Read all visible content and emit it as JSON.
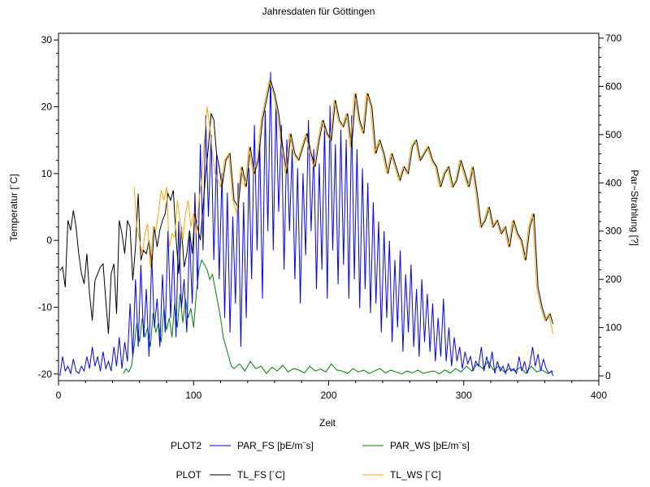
{
  "chart_data": {
    "type": "line",
    "title": "Jahresdaten für Göttingen",
    "xlabel": "Zeit",
    "ylabel_left": "Temperatur [´C]",
    "ylabel_right": "Par−Strahlung [?]",
    "xlim": [
      0,
      400
    ],
    "ylim_left": [
      -21,
      31
    ],
    "ylim_right": [
      -10,
      710
    ],
    "x_ticks": [
      0,
      100,
      200,
      300,
      400
    ],
    "y_left_ticks": [
      -20,
      -10,
      0,
      10,
      20,
      30
    ],
    "y_right_ticks": [
      0,
      100,
      200,
      300,
      400,
      500,
      600,
      700
    ],
    "grid": false,
    "legend_position": "bottom",
    "legend_rows": [
      {
        "label": "PLOT2",
        "entries": [
          {
            "name": "PAR_FS  [þE/m¨s]",
            "color": "#0000ff"
          },
          {
            "name": "PAR_WS  [þE/m¨s]",
            "color": "#008000"
          }
        ]
      },
      {
        "label": "PLOT",
        "entries": [
          {
            "name": "TL_FS  [´C]",
            "color": "#000000"
          },
          {
            "name": "TL_WS  [´C]",
            "color": "#ffa500"
          }
        ]
      }
    ],
    "series": [
      {
        "name": "TL_FS  [´C]",
        "axis": "left",
        "color": "#000000",
        "x": [
          1,
          3,
          5,
          7,
          9,
          11,
          13,
          15,
          17,
          19,
          21,
          23,
          25,
          27,
          29,
          31,
          33,
          35,
          37,
          39,
          41,
          43,
          45,
          47,
          49,
          51,
          53,
          55,
          57,
          59,
          61,
          63,
          65,
          67,
          69,
          71,
          73,
          75,
          77,
          79,
          81,
          83,
          85,
          87,
          89,
          91,
          93,
          95,
          97,
          99,
          101,
          103,
          105,
          107,
          109,
          111,
          113,
          115,
          117,
          119,
          121,
          124,
          127,
          130,
          133,
          136,
          139,
          142,
          145,
          148,
          151,
          154,
          157,
          160,
          163,
          166,
          169,
          172,
          175,
          178,
          181,
          184,
          187,
          190,
          193,
          196,
          199,
          202,
          205,
          208,
          211,
          214,
          217,
          220,
          223,
          226,
          229,
          232,
          235,
          238,
          241,
          244,
          247,
          250,
          253,
          256,
          259,
          262,
          265,
          268,
          271,
          274,
          277,
          280,
          283,
          286,
          289,
          292,
          295,
          298,
          301,
          304,
          307,
          310,
          313,
          316,
          319,
          322,
          325,
          328,
          331,
          334,
          337,
          340,
          343,
          346,
          349,
          352,
          355,
          358,
          361,
          364,
          366
        ],
        "values": [
          -4.5,
          -4,
          -7,
          3,
          1.5,
          4.5,
          2,
          -2,
          -5,
          -6.5,
          -2,
          -8,
          -12,
          -6,
          -5,
          -4,
          -3.5,
          -9,
          -14,
          -5,
          -3.5,
          -11,
          3,
          1,
          -2,
          3,
          2,
          -6,
          -1,
          7,
          -3,
          -1.5,
          -2,
          0,
          -4,
          2,
          -1,
          1.5,
          3,
          4,
          7,
          6,
          7.5,
          0.5,
          -5,
          2,
          -4,
          -2,
          1.5,
          -2,
          4,
          2,
          0,
          5,
          10,
          14,
          19,
          18,
          13,
          11,
          8,
          12,
          13,
          6,
          5,
          11,
          8,
          14,
          10,
          12,
          18,
          21,
          24,
          22,
          19,
          14,
          10,
          16,
          13,
          12,
          14,
          16,
          13,
          11,
          15,
          18,
          16,
          15,
          21,
          18,
          17,
          19,
          14,
          22,
          18,
          16,
          22,
          20,
          13,
          15,
          13,
          10,
          13,
          11,
          9,
          11,
          10,
          14,
          15,
          12,
          13,
          14,
          12,
          11,
          8,
          10,
          11,
          8,
          9,
          12,
          10,
          8,
          11,
          7,
          2,
          3,
          5,
          2,
          3,
          1,
          2,
          -1,
          3,
          1,
          0,
          -3,
          2,
          4,
          -7,
          -10,
          -12,
          -11,
          -12.5
        ]
      },
      {
        "name": "TL_WS  [´C]",
        "axis": "left",
        "color": "#ffa500",
        "x": [
          56,
          58,
          60,
          62,
          64,
          66,
          68,
          70,
          72,
          74,
          76,
          78,
          80,
          82,
          84,
          86,
          88,
          90,
          92,
          94,
          96,
          98,
          100,
          102,
          104,
          106,
          108,
          110,
          112,
          114,
          116,
          118,
          120,
          123,
          126,
          129,
          132,
          135,
          138,
          141,
          144,
          147,
          150,
          153,
          156,
          159,
          162,
          165,
          168,
          171,
          174,
          177,
          180,
          183,
          186,
          189,
          192,
          195,
          198,
          201,
          204,
          207,
          210,
          213,
          216,
          219,
          222,
          225,
          228,
          231,
          234,
          237,
          240,
          243,
          246,
          249,
          252,
          255,
          258,
          261,
          264,
          267,
          270,
          273,
          276,
          279,
          282,
          285,
          288,
          291,
          294,
          297,
          300,
          303,
          306,
          309,
          312,
          315,
          318,
          321,
          324,
          327,
          330,
          333,
          336,
          339,
          342,
          345,
          348,
          351,
          354,
          357,
          360,
          363,
          366
        ],
        "values": [
          8,
          2,
          0,
          -2,
          1,
          2.5,
          -4,
          2,
          1.5,
          4,
          7.5,
          6,
          8,
          -1,
          1,
          0.5,
          6,
          3,
          0,
          4,
          6,
          2,
          4,
          1,
          6,
          9,
          15,
          20,
          17,
          13,
          10,
          9,
          8,
          12,
          13,
          6,
          4,
          11,
          8,
          14,
          10,
          12,
          18,
          21,
          24,
          22,
          19,
          14,
          10,
          16,
          13,
          12,
          14,
          16,
          13,
          11,
          15,
          18,
          16,
          15,
          21,
          18,
          17,
          19,
          14,
          22,
          18,
          16,
          22,
          20,
          13,
          15,
          13,
          10,
          13,
          11,
          9,
          11,
          10,
          14,
          15,
          12,
          13,
          14,
          12,
          11,
          8,
          10,
          11,
          8,
          9,
          12,
          10,
          8,
          11,
          7,
          2,
          3,
          5,
          2,
          3,
          1,
          2,
          -1,
          3,
          1,
          0,
          -3,
          2,
          4,
          -7,
          -10,
          -12,
          -11,
          -14
        ]
      },
      {
        "name": "PAR_FS  [þE/m¨s]",
        "axis": "right",
        "color": "#0000ff",
        "x": [
          1,
          3,
          5,
          7,
          9,
          11,
          13,
          15,
          17,
          19,
          21,
          23,
          25,
          27,
          29,
          31,
          33,
          35,
          37,
          39,
          41,
          43,
          45,
          47,
          49,
          51,
          53,
          55,
          57,
          59,
          61,
          63,
          65,
          67,
          69,
          71,
          73,
          75,
          77,
          79,
          81,
          83,
          85,
          87,
          89,
          91,
          93,
          95,
          97,
          99,
          101,
          103,
          105,
          107,
          109,
          111,
          113,
          115,
          117,
          119,
          121,
          123,
          125,
          127,
          129,
          131,
          133,
          135,
          137,
          139,
          141,
          143,
          145,
          147,
          149,
          151,
          153,
          155,
          157,
          159,
          161,
          163,
          165,
          167,
          169,
          171,
          173,
          175,
          177,
          179,
          181,
          183,
          185,
          187,
          189,
          191,
          193,
          195,
          197,
          199,
          201,
          203,
          205,
          207,
          209,
          211,
          213,
          215,
          217,
          219,
          221,
          223,
          225,
          227,
          229,
          231,
          233,
          235,
          237,
          239,
          241,
          243,
          245,
          247,
          249,
          251,
          253,
          255,
          257,
          259,
          261,
          263,
          265,
          267,
          269,
          271,
          273,
          275,
          277,
          279,
          281,
          283,
          285,
          287,
          289,
          291,
          293,
          295,
          297,
          299,
          301,
          303,
          305,
          307,
          309,
          311,
          313,
          315,
          317,
          319,
          321,
          323,
          325,
          327,
          329,
          331,
          333,
          335,
          337,
          339,
          341,
          343,
          345,
          347,
          349,
          351,
          353,
          355,
          357,
          359,
          361,
          363,
          365,
          366
        ],
        "values": [
          0,
          40,
          10,
          20,
          5,
          35,
          10,
          5,
          20,
          10,
          40,
          15,
          60,
          20,
          40,
          10,
          50,
          15,
          30,
          10,
          60,
          20,
          80,
          15,
          70,
          30,
          150,
          40,
          200,
          60,
          230,
          80,
          180,
          40,
          250,
          100,
          160,
          60,
          210,
          90,
          300,
          120,
          260,
          80,
          320,
          140,
          200,
          90,
          290,
          150,
          380,
          180,
          480,
          260,
          540,
          330,
          500,
          240,
          460,
          200,
          420,
          120,
          380,
          90,
          330,
          150,
          400,
          60,
          360,
          120,
          430,
          200,
          520,
          260,
          480,
          160,
          550,
          300,
          630,
          260,
          560,
          340,
          520,
          220,
          490,
          300,
          470,
          200,
          430,
          150,
          420,
          250,
          530,
          300,
          470,
          180,
          440,
          220,
          520,
          160,
          560,
          260,
          480,
          190,
          510,
          230,
          490,
          160,
          540,
          200,
          470,
          140,
          430,
          180,
          400,
          130,
          360,
          150,
          320,
          90,
          300,
          120,
          280,
          70,
          240,
          100,
          260,
          50,
          210,
          90,
          230,
          60,
          180,
          40,
          200,
          70,
          170,
          50,
          150,
          30,
          120,
          40,
          160,
          30,
          100,
          20,
          80,
          30,
          60,
          15,
          50,
          25,
          40,
          10,
          30,
          20,
          60,
          10,
          40,
          15,
          50,
          5,
          30,
          10,
          20,
          5,
          25,
          10,
          15,
          5,
          40,
          10,
          30,
          5,
          25,
          60,
          20,
          45,
          10,
          35,
          15,
          5,
          10,
          0
        ]
      },
      {
        "name": "PAR_WS  [þE/m¨s]",
        "axis": "right",
        "color": "#008000",
        "x": [
          48,
          50,
          52,
          54,
          56,
          58,
          60,
          62,
          64,
          66,
          68,
          70,
          72,
          74,
          76,
          78,
          80,
          82,
          84,
          86,
          88,
          90,
          92,
          94,
          96,
          98,
          100,
          102,
          104,
          106,
          108,
          110,
          112,
          114,
          116,
          118,
          120,
          122,
          124,
          126,
          128,
          130,
          134,
          138,
          142,
          146,
          150,
          154,
          158,
          162,
          166,
          170,
          174,
          178,
          182,
          186,
          190,
          194,
          198,
          202,
          206,
          210,
          214,
          218,
          222,
          226,
          230,
          234,
          238,
          242,
          246,
          250,
          254,
          258,
          262,
          266,
          270,
          274,
          278,
          282,
          286,
          290,
          294,
          298,
          302,
          306,
          310,
          314,
          318,
          322,
          326,
          330,
          334,
          338,
          342,
          346,
          350,
          354,
          358,
          362,
          366
        ],
        "values": [
          5,
          15,
          8,
          20,
          60,
          110,
          70,
          120,
          80,
          100,
          60,
          130,
          90,
          110,
          70,
          140,
          95,
          120,
          80,
          150,
          100,
          170,
          110,
          160,
          120,
          140,
          100,
          170,
          220,
          240,
          230,
          220,
          200,
          210,
          180,
          150,
          120,
          80,
          60,
          40,
          20,
          15,
          25,
          10,
          30,
          15,
          20,
          5,
          18,
          10,
          22,
          8,
          15,
          12,
          6,
          20,
          10,
          14,
          8,
          25,
          12,
          10,
          5,
          15,
          8,
          12,
          5,
          10,
          15,
          6,
          12,
          8,
          4,
          10,
          6,
          12,
          5,
          8,
          10,
          4,
          12,
          6,
          15,
          8,
          20,
          10,
          25,
          15,
          30,
          12,
          20,
          8,
          15,
          10,
          18,
          5,
          20,
          8,
          12,
          5,
          10
        ]
      }
    ]
  }
}
